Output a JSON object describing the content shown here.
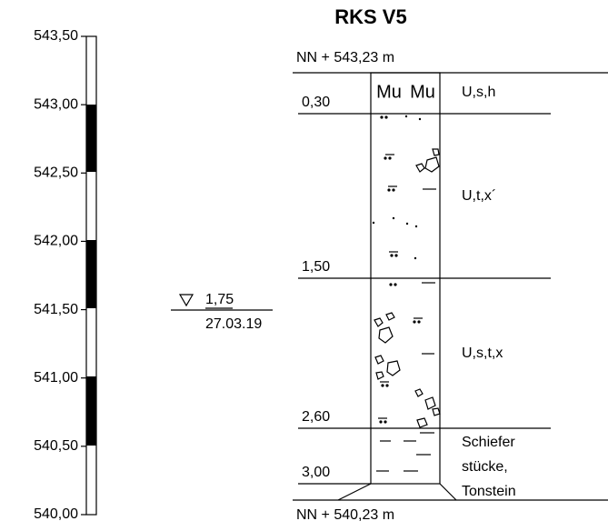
{
  "title": "RKS V5",
  "top_elevation": "NN + 543,23 m",
  "bottom_elevation": "NN + 540,23 m",
  "scale_labels": [
    "543,50",
    "543,00",
    "542,50",
    "542,00",
    "541,50",
    "541,00",
    "540,50",
    "540,00"
  ],
  "header_symbols": [
    "Mu",
    "Mu"
  ],
  "water_level": {
    "depth": "1,75",
    "date": "27.03.19"
  },
  "layers": [
    {
      "depth": "0,30",
      "description": "U,s,h"
    },
    {
      "depth": "1,50",
      "description": "U,t,x´"
    },
    {
      "depth": "2,60",
      "description": "U,s,t,x"
    },
    {
      "depth": "3,00",
      "description": [
        "Schiefer",
        "stücke,",
        "Tonstein"
      ]
    }
  ]
}
